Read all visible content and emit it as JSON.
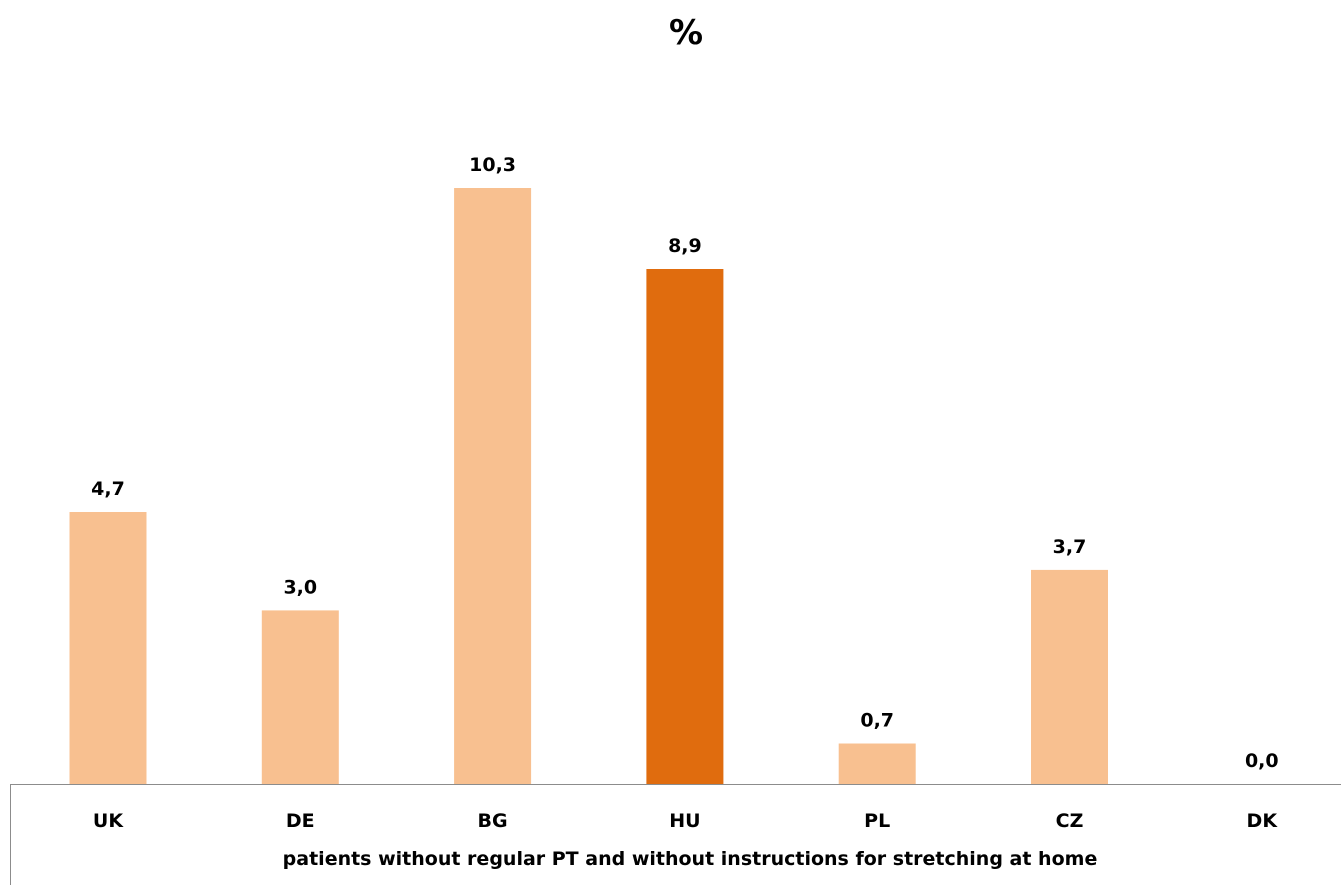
{
  "chart_data": {
    "type": "bar",
    "title": "%",
    "categories": [
      "UK",
      "DE",
      "BG",
      "HU",
      "PL",
      "CZ",
      "DK"
    ],
    "values": [
      4.7,
      3.0,
      10.3,
      8.9,
      0.7,
      3.7,
      0.0
    ],
    "data_labels": [
      "4,7",
      "3,0",
      "10,3",
      "8,9",
      "0,7",
      "3,7",
      "0,0"
    ],
    "xlabel": "patients without regular PT and without instructions for stretching at home",
    "ylabel": "",
    "ylim": [
      0,
      10.3
    ],
    "grid": false,
    "legend": "none",
    "colors": {
      "default": "#f8c090",
      "highlight": "#e06c0e",
      "highlight_category": "HU"
    }
  }
}
